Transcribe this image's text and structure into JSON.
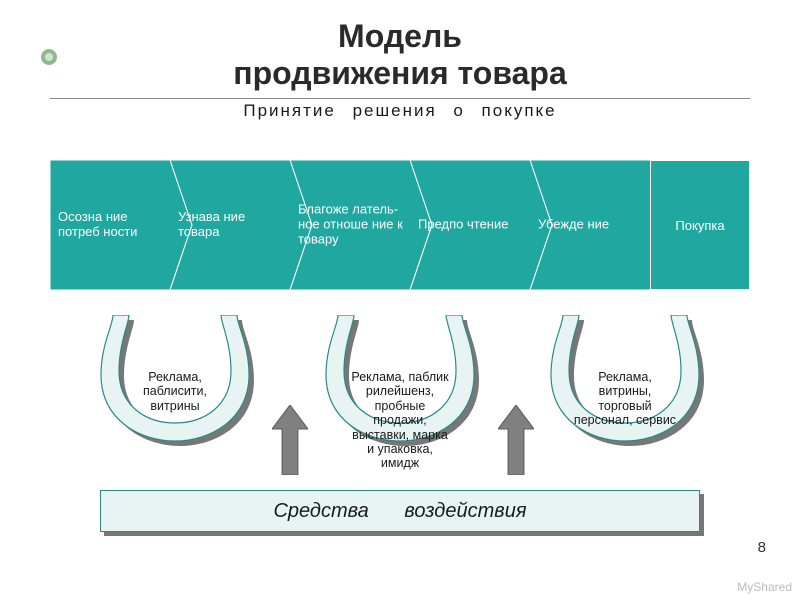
{
  "title": {
    "line1": "Модель",
    "line2": "продвижения товара",
    "fontsize": 32,
    "color": "#2a2a2a"
  },
  "subtitle": {
    "text": "Принятие решения о покупке",
    "fontsize": 17
  },
  "chevrons": {
    "fill": "#20a8a0",
    "stroke": "#ffffff",
    "text_color": "#ffffff",
    "label_fontsize": 13,
    "height": 130,
    "items": [
      {
        "label": "Осозна ние потреб ности"
      },
      {
        "label": "Узнава ние товара"
      },
      {
        "label": "Благоже латель- ное отноше ние к товару"
      },
      {
        "label": "Предпо чтение"
      },
      {
        "label": "Убежде ние"
      }
    ],
    "last_box": {
      "label": "Покупка"
    }
  },
  "buckets": {
    "fill": "#e8f4f4",
    "stroke": "#2a8a8a",
    "shadow": "#777777",
    "label_fontsize": 12.5,
    "items": [
      {
        "label": "Реклама, паблисити, витрины"
      },
      {
        "label": "Реклама, паблик рилейшенз, пробные продажи, выставки, марка и упаковка, имидж"
      },
      {
        "label": "Реклама, витрины, торговый персонал, сервис"
      }
    ]
  },
  "up_arrow": {
    "fill": "#808080",
    "stroke": "#5a5a5a"
  },
  "bottom_bar": {
    "text": "Средства воздействия",
    "fill": "#e8f4f4",
    "stroke": "#2a8a8a",
    "shadow": "#777777",
    "fontsize": 20
  },
  "bullet": {
    "outer": "#8fb88f",
    "inner": "#cde4cd"
  },
  "slide_number": "8",
  "watermark": "MyShared"
}
